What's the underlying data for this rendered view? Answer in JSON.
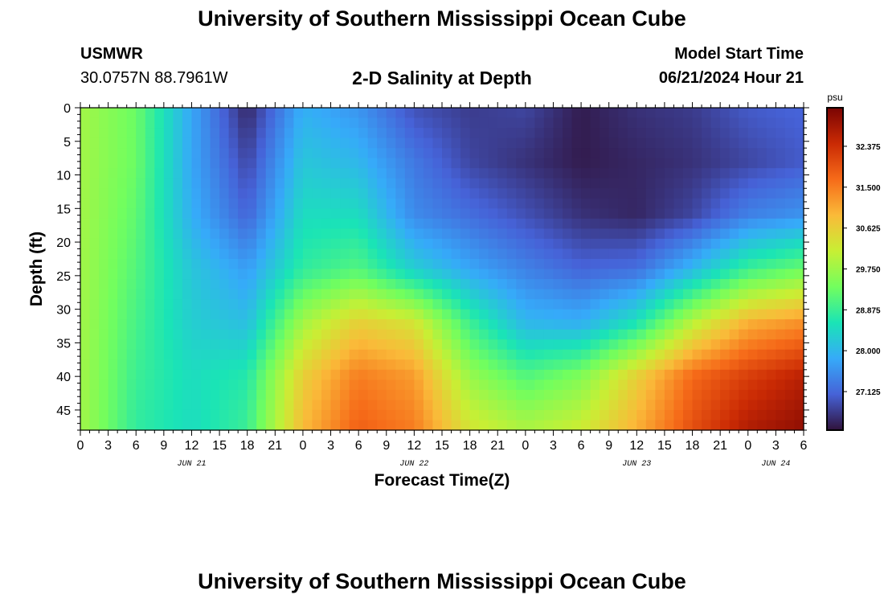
{
  "header": {
    "title": "University of Southern Mississippi Ocean Cube",
    "station_id": "USMWR",
    "station_coords": "30.0757N  88.7961W",
    "subtitle": "2-D Salinity at Depth",
    "model_start_label": "Model Start Time",
    "model_start_value": "06/21/2024 Hour 21"
  },
  "footer": {
    "title": "University of Southern Mississippi Ocean Cube"
  },
  "chart_data": {
    "type": "heatmap",
    "title": "2-D Salinity at Depth",
    "xlabel": "Forecast Time(Z)",
    "ylabel": "Depth (ft)",
    "x_tick_labels": [
      "0",
      "3",
      "6",
      "9",
      "12",
      "15",
      "18",
      "21",
      "0",
      "3",
      "6",
      "9",
      "12",
      "15",
      "18",
      "21",
      "0",
      "3",
      "6",
      "9",
      "12",
      "15",
      "18",
      "21",
      "0",
      "3",
      "6"
    ],
    "x_date_labels": [
      {
        "label": "JUN 21",
        "tick_index": 4
      },
      {
        "label": "JUN 22",
        "tick_index": 12
      },
      {
        "label": "JUN 23",
        "tick_index": 20
      },
      {
        "label": "JUN 24",
        "tick_index": 25
      }
    ],
    "y_tick_labels": [
      "0",
      "5",
      "10",
      "15",
      "20",
      "25",
      "30",
      "35",
      "40",
      "45"
    ],
    "y_range": [
      0,
      48
    ],
    "colorbar": {
      "unit": "psu",
      "range": [
        26.3,
        33.2
      ],
      "tick_values": [
        27.125,
        28.0,
        28.875,
        29.75,
        30.625,
        31.5,
        32.375
      ],
      "tick_labels": [
        "27.125",
        "28.000",
        "28.875",
        "29.750",
        "30.625",
        "31.500",
        "32.375"
      ],
      "colormap": [
        "#30123b",
        "#4662d7",
        "#36aaf9",
        "#1ae4b6",
        "#72fe5e",
        "#c8ef34",
        "#faba39",
        "#f66b19",
        "#ca2a04",
        "#7a0403"
      ]
    },
    "grid_depths": [
      0,
      8,
      16,
      24,
      32,
      40,
      48
    ],
    "grid_hours": [
      0,
      6,
      12,
      18,
      24,
      30,
      36,
      42,
      48,
      54,
      60,
      66,
      72,
      78
    ],
    "values": [
      [
        29.8,
        29.3,
        27.8,
        26.5,
        27.9,
        27.6,
        26.9,
        26.7,
        26.8,
        26.4,
        26.6,
        26.7,
        27.0,
        27.1
      ],
      [
        29.8,
        29.3,
        27.8,
        26.8,
        28.2,
        28.0,
        27.3,
        26.8,
        26.6,
        26.4,
        26.5,
        26.6,
        26.8,
        27.0
      ],
      [
        29.8,
        29.2,
        27.9,
        27.1,
        28.5,
        28.5,
        27.5,
        27.2,
        26.9,
        26.6,
        26.5,
        26.8,
        27.4,
        27.6
      ],
      [
        29.8,
        29.1,
        28.2,
        27.7,
        28.8,
        29.1,
        28.3,
        27.8,
        27.4,
        27.1,
        27.2,
        28.0,
        28.9,
        29.3
      ],
      [
        29.8,
        29.0,
        28.3,
        28.1,
        29.8,
        30.6,
        30.3,
        28.9,
        28.0,
        27.9,
        28.6,
        30.0,
        31.0,
        31.3
      ],
      [
        29.8,
        28.9,
        28.5,
        28.7,
        30.6,
        31.5,
        31.2,
        29.7,
        29.1,
        29.5,
        30.6,
        31.7,
        32.2,
        32.6
      ],
      [
        29.8,
        28.8,
        28.5,
        28.9,
        30.9,
        31.8,
        31.5,
        30.3,
        29.9,
        30.2,
        31.0,
        32.0,
        32.7,
        33.0
      ]
    ]
  }
}
